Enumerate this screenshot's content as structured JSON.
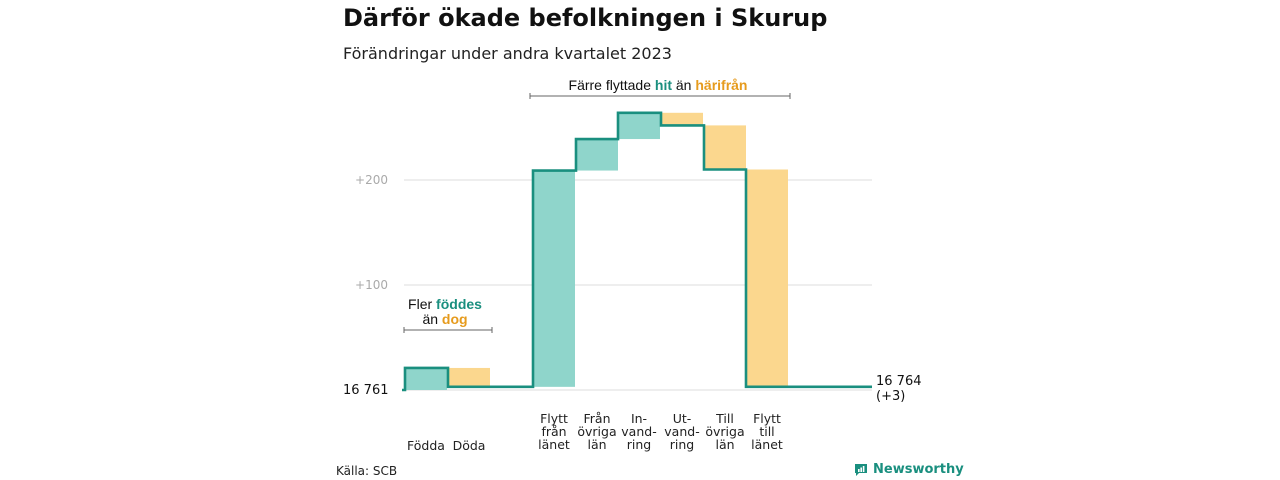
{
  "chart_data": {
    "type": "waterfall",
    "title": "Därför ökade befolkningen i Skurup",
    "subtitle": "Förändringar under andra kvartalet 2023",
    "source": "Källa: SCB",
    "brand": "Newsworthy",
    "start_value": 16761,
    "start_label": "16  761",
    "end_label": "16 764",
    "end_change_label": "(+3)",
    "y_ticks": [
      {
        "value": 100,
        "label": "+100"
      },
      {
        "value": 200,
        "label": "+200"
      }
    ],
    "categories": [
      {
        "label": [
          "Födda"
        ],
        "delta": 21
      },
      {
        "label": [
          "Döda"
        ],
        "delta": -18
      },
      {
        "label": [
          "Flytt",
          "från",
          "länet"
        ],
        "delta": 206
      },
      {
        "label": [
          "Från",
          "övriga",
          "län"
        ],
        "delta": 30
      },
      {
        "label": [
          "In-",
          "vand-",
          "ring"
        ],
        "delta": 25
      },
      {
        "label": [
          "Ut-",
          "vand-",
          "ring"
        ],
        "delta": -12
      },
      {
        "label": [
          "Till",
          "övriga",
          "län"
        ],
        "delta": -42
      },
      {
        "label": [
          "Flytt",
          "till",
          "länet"
        ],
        "delta": -207
      }
    ],
    "annotations": [
      {
        "parts": [
          {
            "text": "Fler ",
            "style": "plain"
          },
          {
            "text": "föddes",
            "style": "teal"
          }
        ],
        "line2": [
          {
            "text": "än ",
            "style": "plain"
          },
          {
            "text": "dog",
            "style": "orange"
          }
        ]
      },
      {
        "parts": [
          {
            "text": "Färre flyttade ",
            "style": "plain"
          },
          {
            "text": "hit",
            "style": "teal"
          },
          {
            "text": " än ",
            "style": "plain"
          },
          {
            "text": "härifrån",
            "style": "orange"
          }
        ]
      }
    ],
    "colors": {
      "increase": "#8fd5cb",
      "decrease": "#fbd78e",
      "line": "#1a8f7f",
      "grid": "#dddddd"
    },
    "grid": true
  }
}
